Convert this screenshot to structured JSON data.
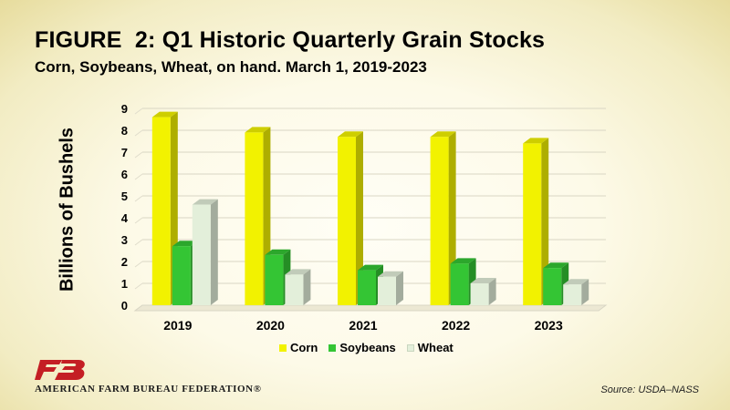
{
  "title": "FIGURE  2: Q1 Historic Quarterly Grain Stocks",
  "subtitle": "Corn, Soybeans, Wheat, on hand. March 1, 2019-2023",
  "organization": "AMERICAN FARM BUREAU FEDERATION®",
  "source": "Source: USDA–NASS",
  "colors": {
    "corn": "#f2f200",
    "soybeans": "#34c534",
    "wheat": "#e3efda",
    "logo": "#c41e24",
    "background": "#fdfae8"
  },
  "chart_data": {
    "type": "bar",
    "title": "FIGURE  2: Q1 Historic Quarterly Grain Stocks",
    "subtitle": "Corn, Soybeans, Wheat, on hand. March 1, 2019-2023",
    "ylabel": "Billions of Bushels",
    "xlabel": "",
    "categories": [
      "2019",
      "2020",
      "2021",
      "2022",
      "2023"
    ],
    "series": [
      {
        "name": "Corn",
        "values": [
          8.6,
          7.9,
          7.7,
          7.7,
          7.4
        ]
      },
      {
        "name": "Soybeans",
        "values": [
          2.7,
          2.3,
          1.6,
          1.9,
          1.7
        ]
      },
      {
        "name": "Wheat",
        "values": [
          4.6,
          1.4,
          1.3,
          1.0,
          0.95
        ]
      }
    ],
    "ylim": [
      0,
      9
    ],
    "yticks": [
      "0",
      "1",
      "2",
      "3",
      "4",
      "5",
      "6",
      "7",
      "8",
      "9"
    ],
    "grid": true,
    "legend_position": "bottom"
  }
}
